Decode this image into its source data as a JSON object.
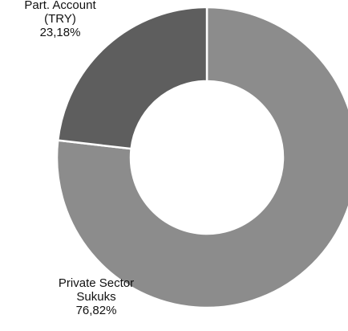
{
  "chart_data": {
    "type": "donut",
    "categories": [
      "Private Sector\nSukuks",
      "Part. Account\n(TRY)"
    ],
    "values": [
      76.82,
      23.18
    ],
    "value_labels": [
      "76,82%",
      "23,18%"
    ],
    "colors": [
      "#8c8c8c",
      "#5e5e5e"
    ]
  }
}
